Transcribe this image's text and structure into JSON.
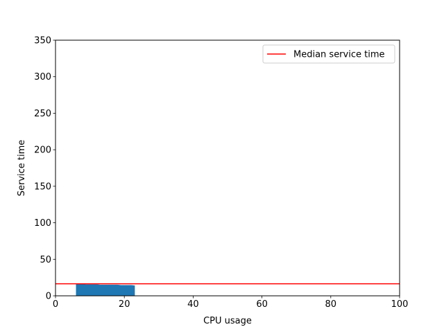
{
  "chart_data": {
    "type": "line",
    "xlabel": "CPU usage",
    "ylabel": "Service time",
    "xlim": [
      0,
      100
    ],
    "ylim": [
      0,
      350
    ],
    "x_ticks": [
      0,
      20,
      40,
      60,
      80,
      100
    ],
    "y_ticks": [
      0,
      50,
      100,
      150,
      200,
      250,
      300,
      350
    ],
    "grid": false,
    "legend_placement": "upper-right",
    "series": [
      {
        "kind": "filled-area",
        "color": "#1f77b4",
        "x": [
          6,
          7,
          8,
          9,
          10,
          11,
          12,
          13,
          14,
          15,
          16,
          17,
          18,
          19,
          20,
          21,
          22,
          23
        ],
        "upper": [
          16,
          16,
          16,
          15.5,
          15.5,
          15.5,
          15.5,
          15,
          15,
          15,
          15,
          15,
          15,
          14.5,
          14.5,
          14.5,
          14.5,
          14
        ],
        "lower": [
          0,
          0,
          0,
          0,
          0,
          0,
          0,
          0,
          0,
          0,
          0,
          0,
          0,
          0,
          0,
          0,
          0,
          0
        ]
      },
      {
        "kind": "horizontal-line",
        "name": "Median service time",
        "color": "#ff0000",
        "y": 16.5
      }
    ]
  }
}
